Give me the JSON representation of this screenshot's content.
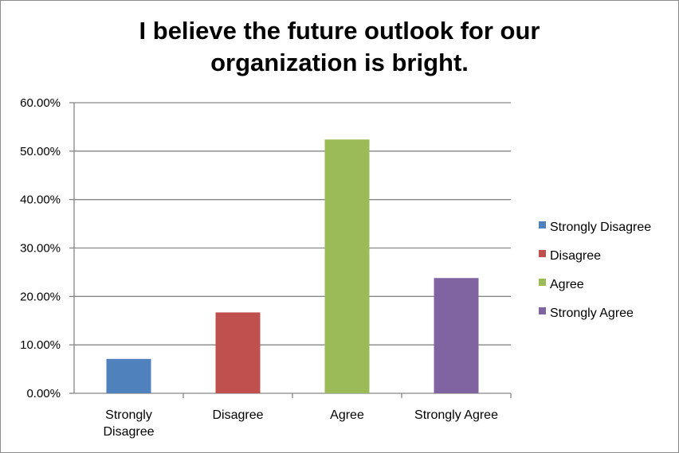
{
  "chart_data": {
    "type": "bar",
    "title_lines": [
      "I believe the future outlook for our",
      "organization is bright."
    ],
    "categories": [
      "Strongly Disagree",
      "Disagree",
      "Agree",
      "Strongly Agree"
    ],
    "category_label_lines": [
      [
        "Strongly",
        "Disagree"
      ],
      [
        "Disagree"
      ],
      [
        "Agree"
      ],
      [
        "Strongly Agree"
      ]
    ],
    "values": [
      7.1,
      16.7,
      52.4,
      23.8
    ],
    "colors": [
      "#4f81bd",
      "#c0504d",
      "#9bbb59",
      "#8064a2"
    ],
    "ylim": [
      0,
      60
    ],
    "yticks": [
      0,
      10,
      20,
      30,
      40,
      50,
      60
    ],
    "ytick_labels": [
      "0.00%",
      "10.00%",
      "20.00%",
      "30.00%",
      "40.00%",
      "50.00%",
      "60.00%"
    ],
    "grid": true,
    "legend": {
      "position": "right",
      "entries": [
        "Strongly Disagree",
        "Disagree",
        "Agree",
        "Strongly Agree"
      ]
    }
  }
}
